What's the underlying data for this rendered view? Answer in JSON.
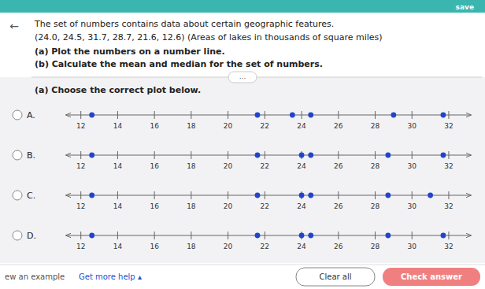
{
  "chart_data": {
    "type": "number_line",
    "title": "The set of numbers contains data about certain geographic features.",
    "subtitle": "(a) Choose the correct plot below.",
    "annotations": [
      "save",
      "←",
      "(24.0, 24.5, 31.7, 28.7, 21.6, 12.6) (Areas of lakes in thousands of square miles)",
      "(a) Plot the numbers on a number line.",
      "(b) Calculate the mean and median for the set of numbers.",
      "...",
      "ew an example",
      "Get more help ▴",
      "Clear all",
      "Check answer"
    ],
    "series": [
      {
        "name": "A.",
        "values": [
          12.6,
          21.6,
          23.5,
          24.5,
          29.0,
          31.7
        ]
      },
      {
        "name": "B.",
        "values": [
          12.6,
          21.6,
          24.0,
          24.5,
          28.7,
          31.7
        ]
      },
      {
        "name": "C.",
        "values": [
          12.6,
          21.6,
          24.0,
          24.5,
          28.7,
          31.0
        ]
      },
      {
        "name": "D.",
        "values": [
          12.6,
          21.6,
          24.0,
          24.5,
          28.7,
          31.7
        ]
      }
    ],
    "color": "#2244cc",
    "xlim": [
      11.2,
      33.2
    ],
    "xticks": [
      12,
      14,
      16,
      18,
      20,
      22,
      24,
      26,
      28,
      30,
      32
    ]
  }
}
